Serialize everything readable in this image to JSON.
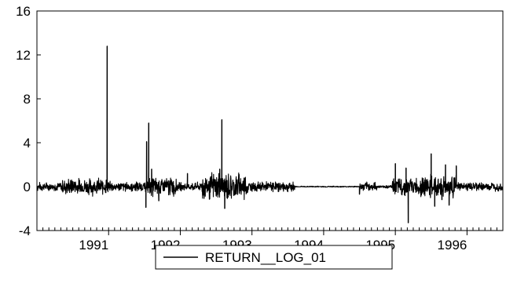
{
  "chart_data": {
    "type": "line",
    "title": "",
    "xlabel": "",
    "ylabel": "",
    "x_range": [
      1990.0,
      1996.5
    ],
    "ylim": [
      -4,
      16
    ],
    "y_ticks": [
      -4,
      0,
      4,
      8,
      12,
      16
    ],
    "y_tick_labels": [
      "-4",
      "0",
      "4",
      "8",
      "12",
      "16"
    ],
    "x_year_ticks": [
      1991,
      1992,
      1993,
      1994,
      1995,
      1996
    ],
    "x_tick_labels": [
      "1991",
      "1992",
      "1993",
      "1994",
      "1995",
      "1996"
    ],
    "grid": false,
    "legend_position": "bottom-center",
    "colors": {
      "line": "#000000",
      "axes": "#000000",
      "background": "#ffffff"
    },
    "series": [
      {
        "name": "RETURN__LOG_01",
        "noise_segments": [
          {
            "start": 1990.0,
            "end": 1990.35,
            "amplitude": 0.3
          },
          {
            "start": 1990.35,
            "end": 1991.0,
            "amplitude": 0.6
          },
          {
            "start": 1991.0,
            "end": 1991.55,
            "amplitude": 0.35
          },
          {
            "start": 1991.55,
            "end": 1991.95,
            "amplitude": 0.7
          },
          {
            "start": 1991.95,
            "end": 1992.3,
            "amplitude": 0.3
          },
          {
            "start": 1992.3,
            "end": 1992.95,
            "amplitude": 1.0
          },
          {
            "start": 1992.95,
            "end": 1993.6,
            "amplitude": 0.35
          },
          {
            "start": 1993.6,
            "end": 1994.5,
            "amplitude": 0.04
          },
          {
            "start": 1994.5,
            "end": 1994.75,
            "amplitude": 0.3
          },
          {
            "start": 1994.75,
            "end": 1994.95,
            "amplitude": 0.1
          },
          {
            "start": 1994.95,
            "end": 1995.35,
            "amplitude": 0.6
          },
          {
            "start": 1995.35,
            "end": 1995.85,
            "amplitude": 0.8
          },
          {
            "start": 1995.85,
            "end": 1996.5,
            "amplitude": 0.3
          }
        ],
        "spikes": [
          {
            "x": 1990.98,
            "y": 12.8
          },
          {
            "x": 1991.53,
            "y": 4.1
          },
          {
            "x": 1991.56,
            "y": 5.8
          },
          {
            "x": 1991.52,
            "y": -1.9
          },
          {
            "x": 1991.6,
            "y": 1.6
          },
          {
            "x": 1991.7,
            "y": -1.3
          },
          {
            "x": 1992.1,
            "y": 1.2
          },
          {
            "x": 1992.58,
            "y": 6.1
          },
          {
            "x": 1992.62,
            "y": -2.0
          },
          {
            "x": 1992.55,
            "y": 1.6
          },
          {
            "x": 1994.5,
            "y": -0.7
          },
          {
            "x": 1995.0,
            "y": 2.1
          },
          {
            "x": 1995.18,
            "y": -3.3
          },
          {
            "x": 1995.15,
            "y": 1.7
          },
          {
            "x": 1995.5,
            "y": 3.0
          },
          {
            "x": 1995.55,
            "y": -1.8
          },
          {
            "x": 1995.7,
            "y": 2.0
          },
          {
            "x": 1995.75,
            "y": -1.7
          },
          {
            "x": 1995.85,
            "y": 1.9
          },
          {
            "x": 1995.65,
            "y": -1.2
          }
        ]
      }
    ]
  }
}
